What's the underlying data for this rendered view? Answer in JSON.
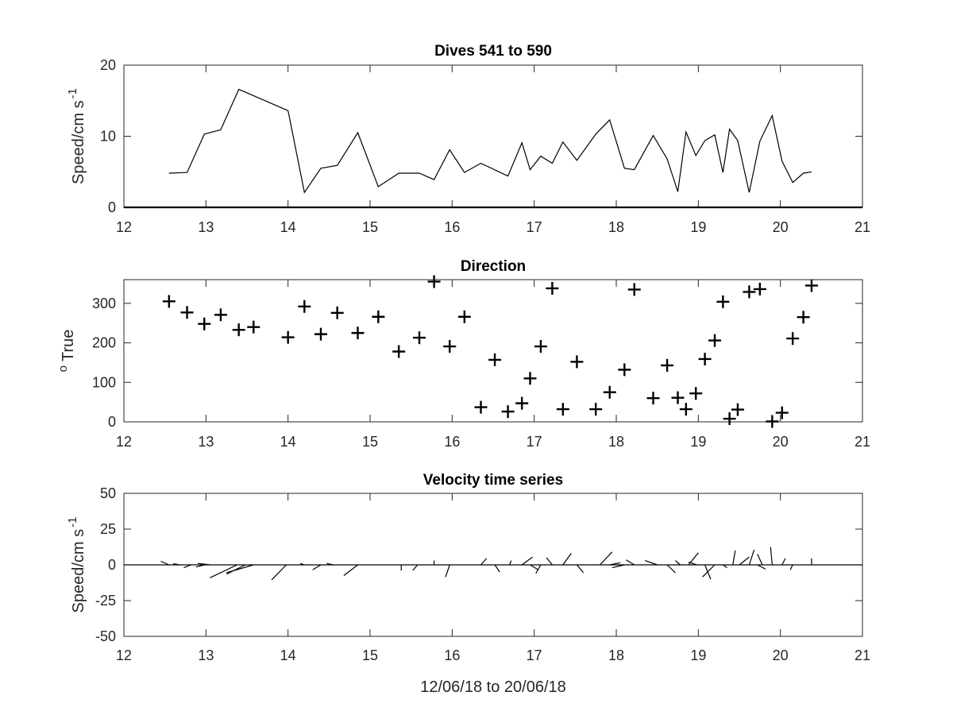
{
  "chart_data": [
    {
      "id": "speed",
      "type": "line",
      "title": "Dives 541 to 590",
      "ylabel": "Speed/cm s",
      "ylabel_sup": "-1",
      "xlabel": "",
      "xlim": [
        12,
        21
      ],
      "ylim": [
        0,
        20
      ],
      "xticks": [
        "12",
        "13",
        "14",
        "15",
        "16",
        "17",
        "18",
        "19",
        "20",
        "21"
      ],
      "yticks": [
        "0",
        "10",
        "20"
      ],
      "grid": false,
      "baseline": 0,
      "x": [
        12.55,
        12.77,
        12.98,
        13.18,
        13.4,
        14.0,
        14.2,
        14.4,
        14.6,
        14.85,
        15.1,
        15.35,
        15.6,
        15.78,
        15.97,
        16.15,
        16.35,
        16.68,
        16.85,
        16.95,
        17.08,
        17.22,
        17.35,
        17.52,
        17.75,
        17.92,
        18.1,
        18.22,
        18.45,
        18.62,
        18.75,
        18.85,
        18.97,
        19.08,
        19.2,
        19.3,
        19.38,
        19.48,
        19.62,
        19.75,
        19.9,
        20.02,
        20.15,
        20.28,
        20.38
      ],
      "values": [
        4.8,
        4.9,
        10.3,
        10.9,
        16.6,
        13.6,
        2.1,
        5.5,
        5.9,
        10.5,
        2.9,
        4.8,
        4.8,
        3.9,
        8.1,
        4.9,
        6.2,
        4.4,
        9.1,
        5.3,
        7.2,
        6.2,
        9.2,
        6.6,
        10.3,
        12.3,
        5.5,
        5.3,
        10.1,
        6.8,
        2.2,
        10.6,
        7.3,
        9.4,
        10.2,
        4.9,
        11.0,
        9.4,
        2.1,
        9.3,
        12.9,
        6.5,
        3.5,
        4.8,
        5.0
      ]
    },
    {
      "id": "direction",
      "type": "scatter",
      "marker": "+",
      "title": "Direction",
      "ylabel": "True",
      "ylabel_sup": "o",
      "xlabel": "",
      "xlim": [
        12,
        21
      ],
      "ylim": [
        0,
        360
      ],
      "xticks": [
        "12",
        "13",
        "14",
        "15",
        "16",
        "17",
        "18",
        "19",
        "20",
        "21"
      ],
      "yticks": [
        "0",
        "100",
        "200",
        "300"
      ],
      "grid": false,
      "x": [
        12.55,
        12.77,
        12.98,
        13.18,
        13.4,
        13.58,
        14.0,
        14.2,
        14.4,
        14.6,
        14.85,
        15.1,
        15.35,
        15.6,
        15.78,
        15.97,
        16.15,
        16.35,
        16.52,
        16.68,
        16.85,
        16.95,
        17.08,
        17.22,
        17.35,
        17.52,
        17.75,
        17.92,
        18.1,
        18.22,
        18.45,
        18.62,
        18.75,
        18.85,
        18.97,
        19.08,
        19.2,
        19.3,
        19.38,
        19.48,
        19.62,
        19.75,
        19.9,
        20.02,
        20.15,
        20.28,
        20.38
      ],
      "values": [
        305,
        277,
        248,
        271,
        233,
        240,
        214,
        292,
        222,
        276,
        225,
        266,
        178,
        213,
        355,
        191,
        266,
        37,
        157,
        26,
        47,
        110,
        191,
        338,
        32,
        152,
        32,
        75,
        132,
        335,
        60,
        143,
        61,
        32,
        72,
        159,
        206,
        304,
        8,
        31,
        329,
        336,
        1,
        23,
        211,
        265,
        345
      ]
    },
    {
      "id": "velocity",
      "type": "line",
      "subtype": "stick",
      "title": "Velocity time series",
      "ylabel": "Speed/cm s",
      "ylabel_sup": "-1",
      "xlabel": "12/06/18 to 20/06/18",
      "xlim": [
        12,
        21
      ],
      "ylim": [
        -50,
        50
      ],
      "xticks": [
        "12",
        "13",
        "14",
        "15",
        "16",
        "17",
        "18",
        "19",
        "20",
        "21"
      ],
      "yticks": [
        "-50",
        "-25",
        "0",
        "25",
        "50"
      ],
      "grid": false,
      "baseline": 0,
      "series": [
        {
          "x": [
            12.55,
            12.45
          ],
          "values": [
            0,
            2.5
          ]
        },
        {
          "x": [
            12.68,
            12.6
          ],
          "values": [
            0,
            0.8
          ]
        },
        {
          "x": [
            12.82,
            12.73
          ],
          "values": [
            0,
            -2.0
          ]
        },
        {
          "x": [
            12.98,
            12.88
          ],
          "values": [
            0,
            -1.5
          ]
        },
        {
          "x": [
            13.05,
            12.9
          ],
          "values": [
            0,
            1.0
          ]
        },
        {
          "x": [
            13.38,
            13.05
          ],
          "values": [
            0,
            -9.0
          ]
        },
        {
          "x": [
            13.48,
            13.25
          ],
          "values": [
            0,
            -6.5
          ]
        },
        {
          "x": [
            13.58,
            13.25
          ],
          "values": [
            0,
            -5.5
          ]
        },
        {
          "x": [
            13.98,
            13.8
          ],
          "values": [
            0,
            -10.5
          ]
        },
        {
          "x": [
            14.2,
            14.15
          ],
          "values": [
            0,
            0.9
          ]
        },
        {
          "x": [
            14.4,
            14.3
          ],
          "values": [
            0,
            -3.5
          ]
        },
        {
          "x": [
            14.55,
            14.47
          ],
          "values": [
            0,
            1.0
          ]
        },
        {
          "x": [
            14.85,
            14.68
          ],
          "values": [
            0,
            -7.5
          ]
        },
        {
          "x": [
            15.38,
            15.38
          ],
          "values": [
            0,
            -4.0
          ]
        },
        {
          "x": [
            15.58,
            15.52
          ],
          "values": [
            0,
            -3.8
          ]
        },
        {
          "x": [
            15.78,
            15.78
          ],
          "values": [
            0,
            3.0
          ]
        },
        {
          "x": [
            15.97,
            15.92
          ],
          "values": [
            0,
            -8.5
          ]
        },
        {
          "x": [
            16.35,
            16.42
          ],
          "values": [
            0,
            4.5
          ]
        },
        {
          "x": [
            16.52,
            16.58
          ],
          "values": [
            0,
            -5.0
          ]
        },
        {
          "x": [
            16.7,
            16.72
          ],
          "values": [
            0,
            3.0
          ]
        },
        {
          "x": [
            16.85,
            16.98
          ],
          "values": [
            0,
            5.5
          ]
        },
        {
          "x": [
            16.95,
            17.05
          ],
          "values": [
            0,
            -3.5
          ]
        },
        {
          "x": [
            17.08,
            17.02
          ],
          "values": [
            0,
            -6.0
          ]
        },
        {
          "x": [
            17.22,
            17.15
          ],
          "values": [
            0,
            5.0
          ]
        },
        {
          "x": [
            17.35,
            17.45
          ],
          "values": [
            0,
            8.0
          ]
        },
        {
          "x": [
            17.52,
            17.6
          ],
          "values": [
            0,
            -5.5
          ]
        },
        {
          "x": [
            17.8,
            17.95
          ],
          "values": [
            0,
            9.0
          ]
        },
        {
          "x": [
            17.92,
            18.05
          ],
          "values": [
            0,
            1.5
          ]
        },
        {
          "x": [
            18.1,
            17.95
          ],
          "values": [
            0,
            -2.0
          ]
        },
        {
          "x": [
            18.22,
            18.12
          ],
          "values": [
            0,
            3.5
          ]
        },
        {
          "x": [
            18.5,
            18.35
          ],
          "values": [
            0,
            3.0
          ]
        },
        {
          "x": [
            18.62,
            18.72
          ],
          "values": [
            0,
            -5.5
          ]
        },
        {
          "x": [
            18.78,
            18.72
          ],
          "values": [
            0,
            3.0
          ]
        },
        {
          "x": [
            18.88,
            19.0
          ],
          "values": [
            0,
            8.5
          ]
        },
        {
          "x": [
            18.98,
            18.88
          ],
          "values": [
            0,
            2.0
          ]
        },
        {
          "x": [
            19.08,
            19.15
          ],
          "values": [
            0,
            -10.0
          ]
        },
        {
          "x": [
            19.2,
            19.05
          ],
          "values": [
            0,
            -8.5
          ]
        },
        {
          "x": [
            19.3,
            19.35
          ],
          "values": [
            0,
            -2.0
          ]
        },
        {
          "x": [
            19.42,
            19.45
          ],
          "values": [
            0,
            10.0
          ]
        },
        {
          "x": [
            19.5,
            19.62
          ],
          "values": [
            0,
            5.5
          ]
        },
        {
          "x": [
            19.62,
            19.68
          ],
          "values": [
            0,
            10.5
          ]
        },
        {
          "x": [
            19.72,
            19.82
          ],
          "values": [
            0,
            -3.0
          ]
        },
        {
          "x": [
            19.78,
            19.72
          ],
          "values": [
            0,
            7.5
          ]
        },
        {
          "x": [
            19.9,
            19.88
          ],
          "values": [
            0,
            12.5
          ]
        },
        {
          "x": [
            20.02,
            20.06
          ],
          "values": [
            0,
            4.5
          ]
        },
        {
          "x": [
            20.15,
            20.12
          ],
          "values": [
            0,
            -3.5
          ]
        },
        {
          "x": [
            20.38,
            20.38
          ],
          "values": [
            0,
            4.5
          ]
        }
      ]
    }
  ]
}
